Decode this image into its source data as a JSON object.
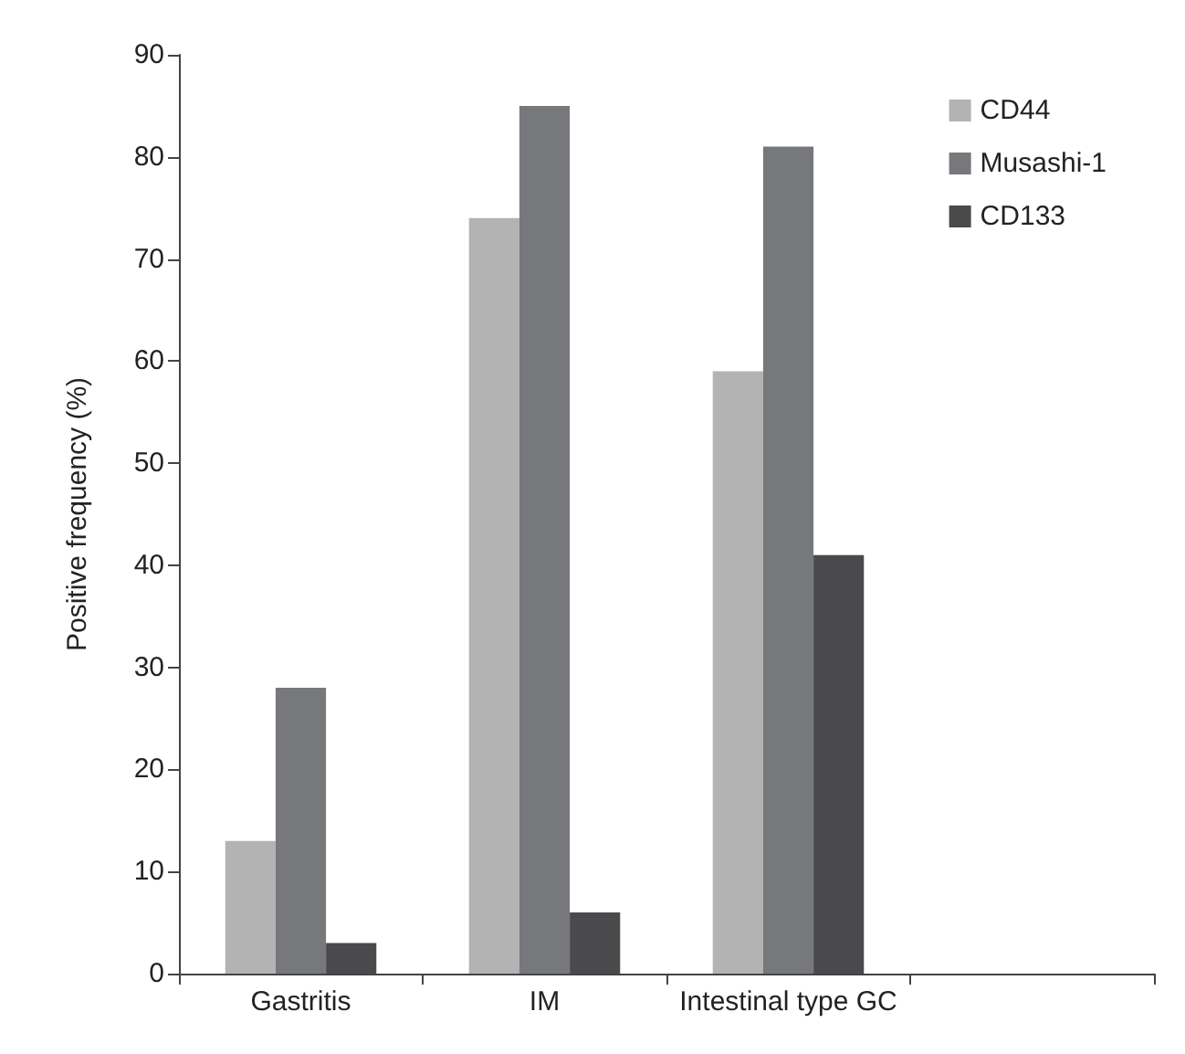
{
  "chart_data": {
    "type": "bar",
    "ylabel": "Positive frequency (%)",
    "categories": [
      "Gastritis",
      "IM",
      "Intestinal type GC",
      null
    ],
    "series": [
      {
        "name": "CD44",
        "color": "#b3b3b3",
        "values": [
          13,
          74,
          59,
          null
        ]
      },
      {
        "name": "Musashi-1",
        "color": "#77787b",
        "values": [
          28,
          85,
          81,
          null
        ]
      },
      {
        "name": "CD133",
        "color": "#4a4a4c",
        "values": [
          3,
          6,
          41,
          null
        ]
      }
    ],
    "ylim": [
      0,
      90
    ],
    "yticks": [
      0,
      10,
      20,
      30,
      40,
      50,
      60,
      70,
      80,
      90
    ],
    "grid": false,
    "legend": "top right"
  }
}
